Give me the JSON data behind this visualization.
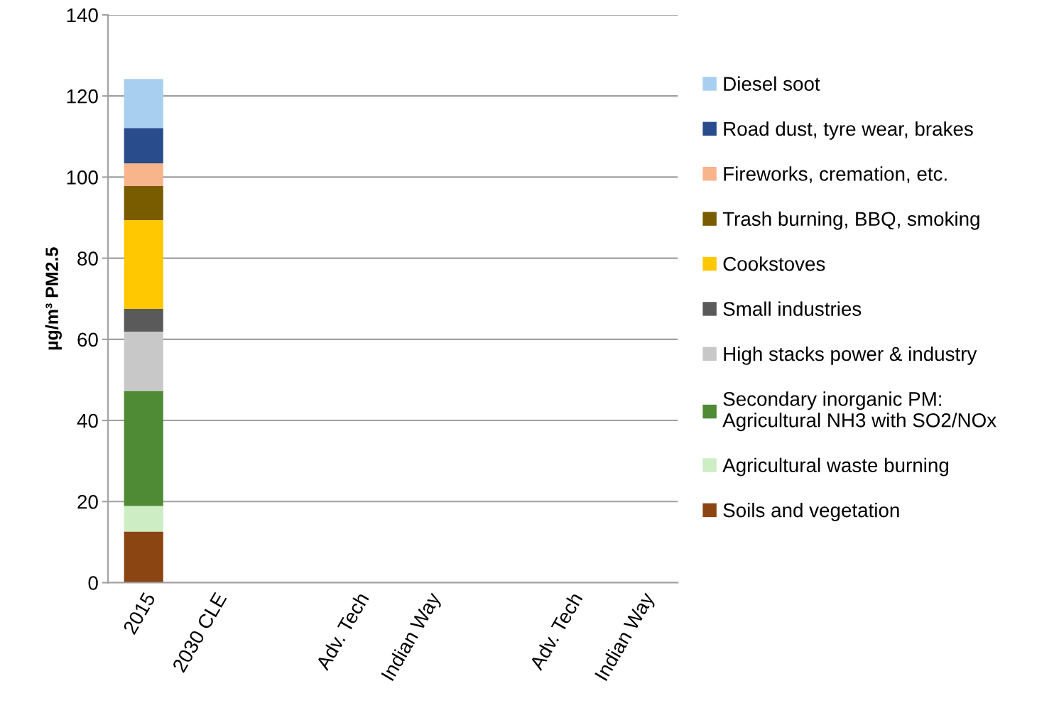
{
  "chart_data": {
    "type": "bar",
    "stacked": true,
    "ylabel": "µg/m³ PM2.5",
    "categories": [
      "2015",
      "2030 CLE",
      null,
      "Adv. Tech",
      "Indian Way",
      null,
      "Adv. Tech",
      "Indian Way"
    ],
    "series": [
      {
        "name": "Soils and vegetation",
        "color": "#8b4513",
        "values": [
          12.6,
          null,
          null,
          null,
          null,
          null,
          null,
          null
        ]
      },
      {
        "name": "Agricultural waste burning",
        "color": "#cdeec4",
        "values": [
          6.3,
          null,
          null,
          null,
          null,
          null,
          null,
          null
        ]
      },
      {
        "name": "Secondary inorganic PM:\nAgricultural NH3 with SO2/NOx",
        "color": "#4f8a35",
        "values": [
          28.4,
          null,
          null,
          null,
          null,
          null,
          null,
          null
        ]
      },
      {
        "name": "High stacks power & industry",
        "color": "#c8c8c8",
        "values": [
          14.6,
          null,
          null,
          null,
          null,
          null,
          null,
          null
        ]
      },
      {
        "name": "Small industries",
        "color": "#5a5a5a",
        "values": [
          5.6,
          null,
          null,
          null,
          null,
          null,
          null,
          null
        ]
      },
      {
        "name": "Cookstoves",
        "color": "#ffc800",
        "values": [
          21.9,
          null,
          null,
          null,
          null,
          null,
          null,
          null
        ]
      },
      {
        "name": "Trash burning, BBQ, smoking",
        "color": "#7a5c00",
        "values": [
          8.4,
          null,
          null,
          null,
          null,
          null,
          null,
          null
        ]
      },
      {
        "name": "Fireworks, cremation, etc.",
        "color": "#f8b58c",
        "values": [
          5.6,
          null,
          null,
          null,
          null,
          null,
          null,
          null
        ]
      },
      {
        "name": "Road dust, tyre wear, brakes",
        "color": "#284c8c",
        "values": [
          8.7,
          null,
          null,
          null,
          null,
          null,
          null,
          null
        ]
      },
      {
        "name": "Diesel soot",
        "color": "#a8cff0",
        "values": [
          12.1,
          null,
          null,
          null,
          null,
          null,
          null,
          null
        ]
      }
    ],
    "ylim": [
      0,
      140
    ],
    "yticks": [
      0,
      20,
      40,
      60,
      80,
      100,
      120,
      140
    ],
    "grid": "y",
    "legend": "right"
  }
}
